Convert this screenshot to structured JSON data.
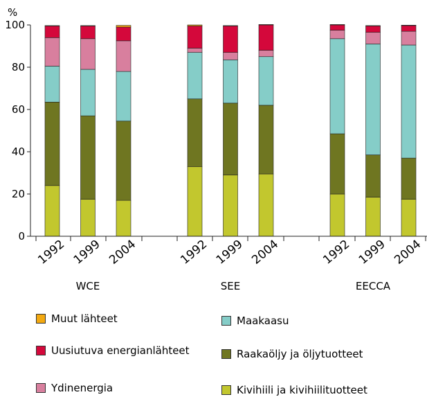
{
  "chart_data": {
    "type": "bar",
    "stacked": true,
    "y_unit_label": "%",
    "ylim": [
      0,
      100
    ],
    "yticks": [
      0,
      20,
      40,
      60,
      80,
      100
    ],
    "grid": false,
    "groups": [
      {
        "name": "WCE",
        "categories": [
          "1992",
          "1999",
          "2004"
        ]
      },
      {
        "name": "SEE",
        "categories": [
          "1992",
          "1999",
          "2004"
        ]
      },
      {
        "name": "EECCA",
        "categories": [
          "1992",
          "1999",
          "2004"
        ]
      }
    ],
    "series": [
      {
        "name": "Kivihiili ja kivihiilituotteet",
        "color": "#c2c72e",
        "values": [
          24,
          17.5,
          17,
          33,
          29,
          29.5,
          20,
          18.5,
          17.5
        ]
      },
      {
        "name": "Raakaöljy ja öljytuotteet",
        "color": "#6f7621",
        "values": [
          39.5,
          39.5,
          37.5,
          32,
          34,
          32.5,
          28.5,
          20,
          19.5
        ]
      },
      {
        "name": "Maakaasu",
        "color": "#85cdc8",
        "values": [
          17,
          22,
          23.5,
          22,
          20.5,
          23,
          45,
          52.5,
          53.5
        ]
      },
      {
        "name": "Ydinenergia",
        "color": "#d87f9e",
        "values": [
          13.5,
          14.5,
          14.5,
          2,
          3.5,
          3,
          4,
          5.5,
          6.5
        ]
      },
      {
        "name": "Uusiutuva energianlähteet",
        "color": "#d4083b",
        "values": [
          5.5,
          6,
          6.5,
          10.5,
          12.5,
          12,
          2.5,
          3,
          2.7
        ]
      },
      {
        "name": "Muut lähteet",
        "color": "#f3a911",
        "values": [
          0.2,
          0.2,
          0.8,
          0.5,
          0.2,
          0.2,
          0.2,
          0.2,
          0.2
        ]
      }
    ],
    "legend": [
      {
        "series": "Muut lähteet",
        "label": "Muut lähteet"
      },
      {
        "series": "Maakaasu",
        "label": "Maakaasu"
      },
      {
        "series": "Uusiutuva energianlähteet",
        "label": "Uusiutuva energianlähteet"
      },
      {
        "series": "Raakaöljy ja öljytuotteet",
        "label": "Raakaöljy ja öljytuotteet"
      },
      {
        "series": "Ydinenergia",
        "label": "Ydinenergia"
      },
      {
        "series": "Kivihiili ja kivihiilituotteet",
        "label": "Kivihiili ja kivihiilituotteet"
      }
    ]
  }
}
